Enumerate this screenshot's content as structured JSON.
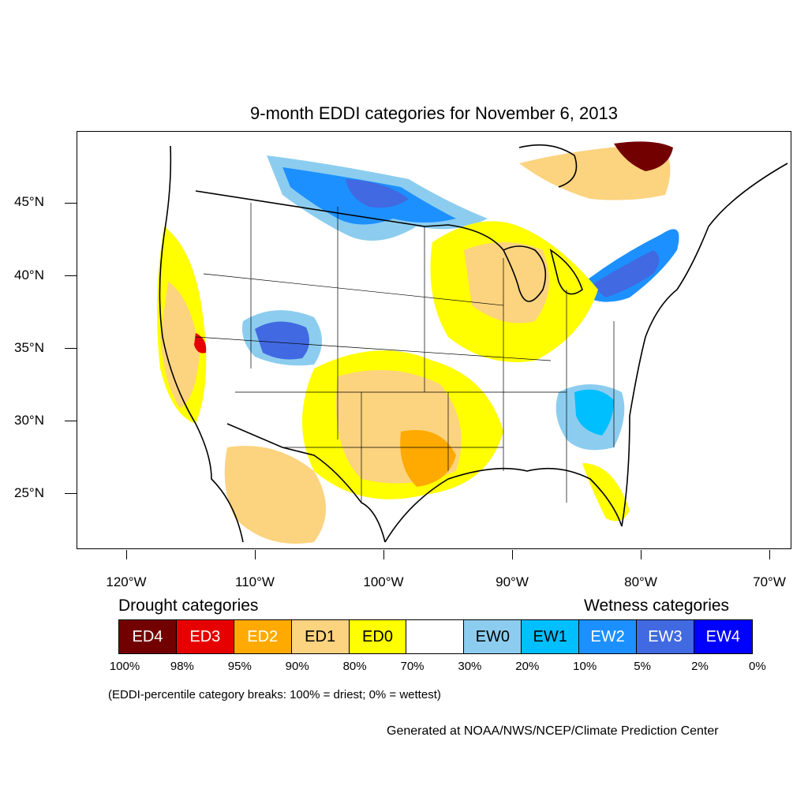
{
  "title": "9-month EDDI categories for November 6, 2013",
  "lat_labels": [
    "45°N",
    "40°N",
    "35°N",
    "30°N",
    "25°N"
  ],
  "lon_labels": [
    "120°W",
    "110°W",
    "100°W",
    "90°W",
    "80°W",
    "70°W"
  ],
  "legend": {
    "drought_heading": "Drought categories",
    "wetness_heading": "Wetness categories",
    "categories": [
      {
        "label": "ED4",
        "color": "#730000",
        "text_color": "#ffffff"
      },
      {
        "label": "ED3",
        "color": "#e60000",
        "text_color": "#ffffff"
      },
      {
        "label": "ED2",
        "color": "#ffaa00",
        "text_color": "#ffffff"
      },
      {
        "label": "ED1",
        "color": "#fcd37f",
        "text_color": "#000000"
      },
      {
        "label": "ED0",
        "color": "#ffff00",
        "text_color": "#000000"
      },
      {
        "label": "",
        "color": "#ffffff",
        "text_color": "#000000"
      },
      {
        "label": "EW0",
        "color": "#8ccdef",
        "text_color": "#000000"
      },
      {
        "label": "EW1",
        "color": "#00bfff",
        "text_color": "#000000"
      },
      {
        "label": "EW2",
        "color": "#1d90ff",
        "text_color": "#ffffff"
      },
      {
        "label": "EW3",
        "color": "#4169e1",
        "text_color": "#ffffff"
      },
      {
        "label": "EW4",
        "color": "#0000ff",
        "text_color": "#ffffff"
      }
    ],
    "percentiles": [
      "100%",
      "98%",
      "95%",
      "90%",
      "80%",
      "70%",
      "30%",
      "20%",
      "10%",
      "5%",
      "2%",
      "0%"
    ]
  },
  "note": "(EDDI-percentile category breaks: 100% = driest; 0% = wettest)",
  "credit": "Generated at NOAA/NWS/NCEP/Climate Prediction Center"
}
